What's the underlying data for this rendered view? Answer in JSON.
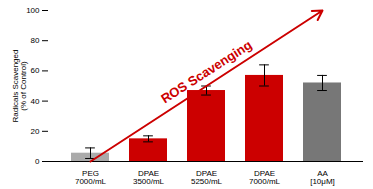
{
  "chart_data": {
    "type": "bar",
    "categories": [
      "PEG\n7000/mL",
      "DPAE\n3500/mL",
      "DPAE\n5250/mL",
      "DPAE\n7000/mL",
      "AA\n[10μM]"
    ],
    "values": [
      5.5,
      15,
      47,
      57,
      52
    ],
    "errors": [
      3.5,
      2,
      3,
      7,
      5
    ],
    "colors": [
      "#aaaaaa",
      "#cc0000",
      "#cc0000",
      "#cc0000",
      "#777777"
    ],
    "ylabel": "Radicals Scavenged\n(% of Control)",
    "ylim": [
      0,
      100
    ],
    "yticks": [
      0,
      20,
      40,
      60,
      80,
      100
    ],
    "grid": false,
    "annotations": [
      {
        "text": "ROS Scavenging",
        "color": "#cc0000"
      }
    ]
  }
}
